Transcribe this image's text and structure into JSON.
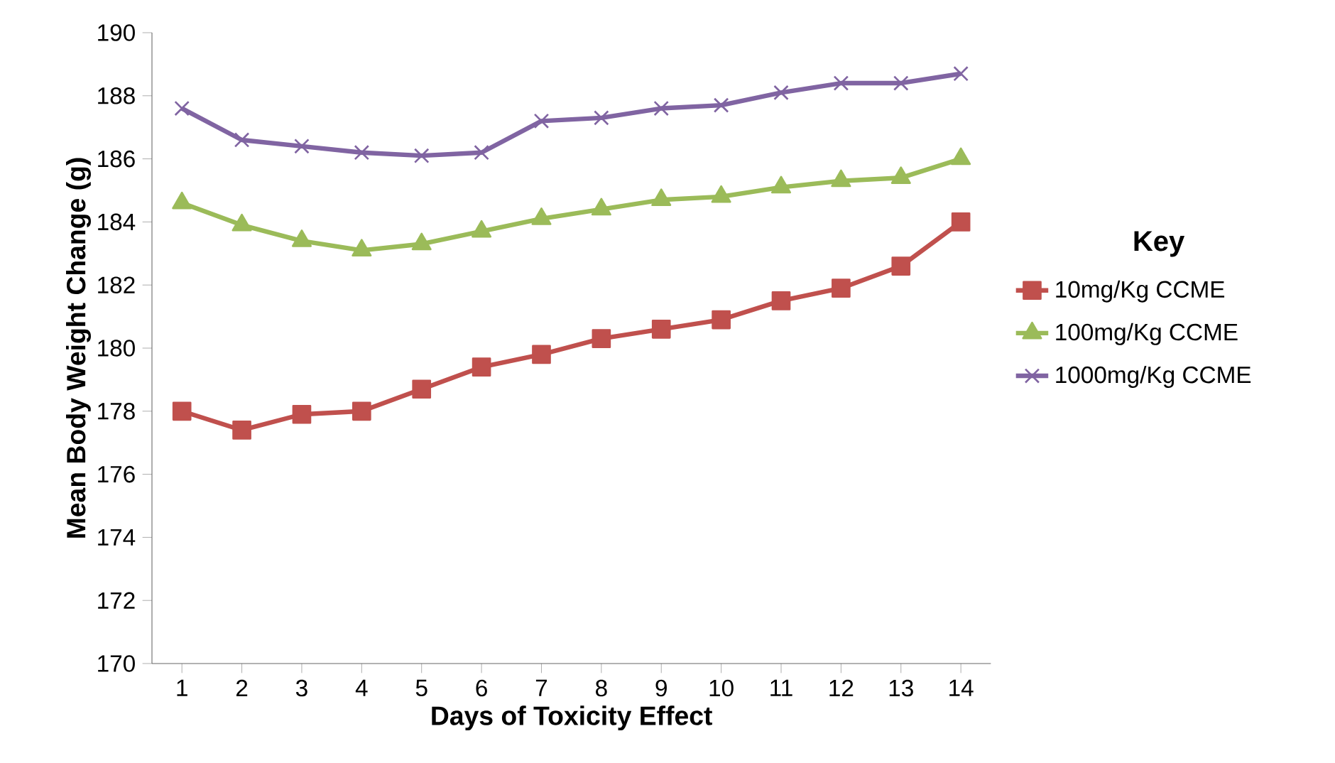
{
  "chart_data": {
    "type": "line",
    "xlabel": "Days of Toxicity Effect",
    "ylabel": "Mean Body Weight Change (g)",
    "legend_title": "Key",
    "legend": "right",
    "grid": false,
    "categories": [
      "1",
      "2",
      "3",
      "4",
      "5",
      "6",
      "7",
      "8",
      "9",
      "10",
      "11",
      "12",
      "13",
      "14"
    ],
    "ylim": [
      170,
      190
    ],
    "yticks": [
      170,
      172,
      174,
      176,
      178,
      180,
      182,
      184,
      186,
      188,
      190
    ],
    "series": [
      {
        "name": "10mg/Kg CCME",
        "color": "#c0504d",
        "marker": "square",
        "values": [
          178.0,
          177.4,
          177.9,
          178.0,
          178.7,
          179.4,
          179.8,
          180.3,
          180.6,
          180.9,
          181.5,
          181.9,
          182.6,
          184.0
        ]
      },
      {
        "name": "100mg/Kg CCME",
        "color": "#9bbb59",
        "marker": "triangle",
        "values": [
          184.6,
          183.9,
          183.4,
          183.1,
          183.3,
          183.7,
          184.1,
          184.4,
          184.7,
          184.8,
          185.1,
          185.3,
          185.4,
          186.0
        ]
      },
      {
        "name": "1000mg/Kg CCME",
        "color": "#8064a2",
        "marker": "cross",
        "values": [
          187.6,
          186.6,
          186.4,
          186.2,
          186.1,
          186.2,
          187.2,
          187.3,
          187.6,
          187.7,
          188.1,
          188.4,
          188.4,
          188.7
        ]
      }
    ]
  }
}
